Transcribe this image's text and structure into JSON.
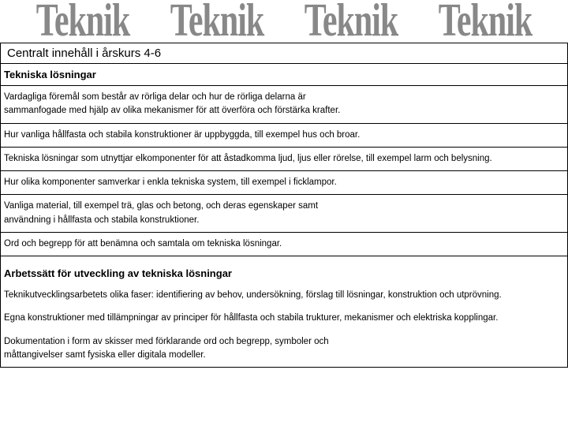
{
  "banner": {
    "word": "Teknik",
    "repeat": 4,
    "color": "#888888",
    "fontsize": 42
  },
  "box1": {
    "title": "Centralt innehåll i årskurs 4-6",
    "section_heading": "Tekniska lösningar",
    "items": [
      "Vardagliga föremål som består av rörliga delar och hur de rörliga delarna är\nsammanfogade med hjälp av olika mekanismer för att överföra och förstärka krafter.",
      "Hur vanliga hållfasta och stabila konstruktioner är uppbyggda, till exempel hus och broar.",
      "Tekniska lösningar som utnyttjar elkomponenter för att åstadkomma ljud, ljus eller rörelse, till exempel larm och belysning.",
      "Hur olika komponenter samverkar i enkla tekniska system, till exempel i ficklampor.",
      "Vanliga material, till exempel trä, glas och betong, och deras egenskaper samt\nanvändning i hållfasta och stabila konstruktioner.",
      "Ord och begrepp för att benämna och samtala om tekniska lösningar."
    ]
  },
  "box2": {
    "section_heading": "Arbetssätt för utveckling av tekniska lösningar",
    "items": [
      "Teknikutvecklingsarbetets olika faser: identifiering av behov, undersökning, förslag till lösningar, konstruktion och utprövning.",
      "Egna konstruktioner med tillämpningar av principer för hållfasta och stabila trukturer, mekanismer och elektriska kopplingar.",
      "Dokumentation i form av skisser med förklarande ord och begrepp, symboler och\nmåttangivelser samt fysiska eller digitala modeller."
    ]
  },
  "styling": {
    "background": "#ffffff",
    "border_color": "#000000",
    "text_color": "#000000",
    "body_fontsize": 11.5,
    "heading_fontsize": 13,
    "title_fontsize": 15
  }
}
